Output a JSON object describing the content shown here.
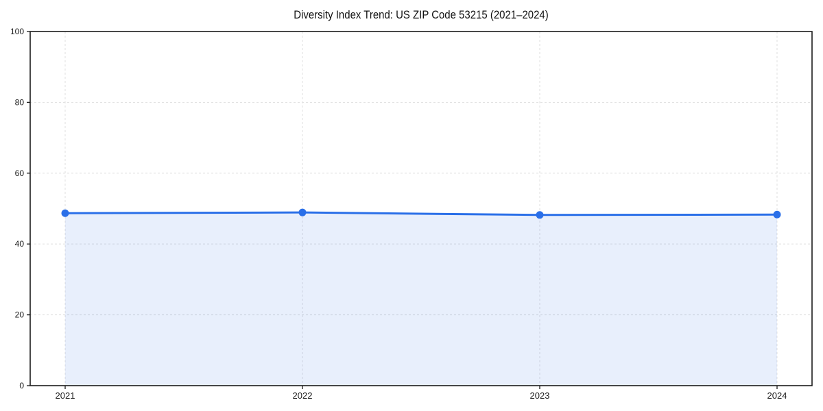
{
  "chart_data": {
    "type": "area",
    "title": "Diversity Index Trend: US ZIP Code 53215 (2021–2024)",
    "xlabel": "",
    "ylabel": "",
    "categories": [
      "2021",
      "2022",
      "2023",
      "2024"
    ],
    "series": [
      {
        "name": "Diversity Index",
        "values": [
          48.7,
          48.9,
          48.2,
          48.3
        ]
      }
    ],
    "ylim": [
      0,
      100
    ],
    "yticks": [
      0,
      20,
      40,
      60,
      80,
      100
    ],
    "grid": true,
    "grid_style": "dashed",
    "legend": "none",
    "colors": {
      "line": "#2a6fe8",
      "marker": "#2a6fe8",
      "fill_rgba": "rgba(42,111,232,0.11)",
      "grid": "#e2e2e2",
      "axis": "#1a1a1a",
      "tick_text": "#1a1a1a",
      "background": "#ffffff"
    }
  }
}
